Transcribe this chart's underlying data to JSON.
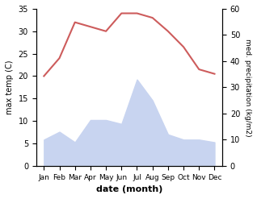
{
  "months": [
    "Jan",
    "Feb",
    "Mar",
    "Apr",
    "May",
    "Jun",
    "Jul",
    "Aug",
    "Sep",
    "Oct",
    "Nov",
    "Dec"
  ],
  "month_x": [
    1,
    2,
    3,
    4,
    5,
    6,
    7,
    8,
    9,
    10,
    11,
    12
  ],
  "max_temp": [
    20.0,
    24.0,
    32.0,
    31.0,
    30.0,
    34.0,
    34.0,
    33.0,
    30.0,
    26.5,
    21.5,
    20.5
  ],
  "precipitation": [
    10.0,
    13.0,
    9.0,
    17.5,
    17.5,
    16.0,
    33.0,
    25.0,
    12.0,
    10.0,
    10.0,
    9.0
  ],
  "temp_color": "#cd5c5c",
  "precip_fill_color": "#c8d4f0",
  "temp_ylim": [
    0,
    35
  ],
  "precip_ylim": [
    0,
    60
  ],
  "left_yticks": [
    0,
    5,
    10,
    15,
    20,
    25,
    30,
    35
  ],
  "right_yticks": [
    0,
    10,
    20,
    30,
    40,
    50,
    60
  ],
  "ylabel_left": "max temp (C)",
  "ylabel_right": "med. precipitation (kg/m2)",
  "xlabel": "date (month)",
  "background_color": "#ffffff"
}
